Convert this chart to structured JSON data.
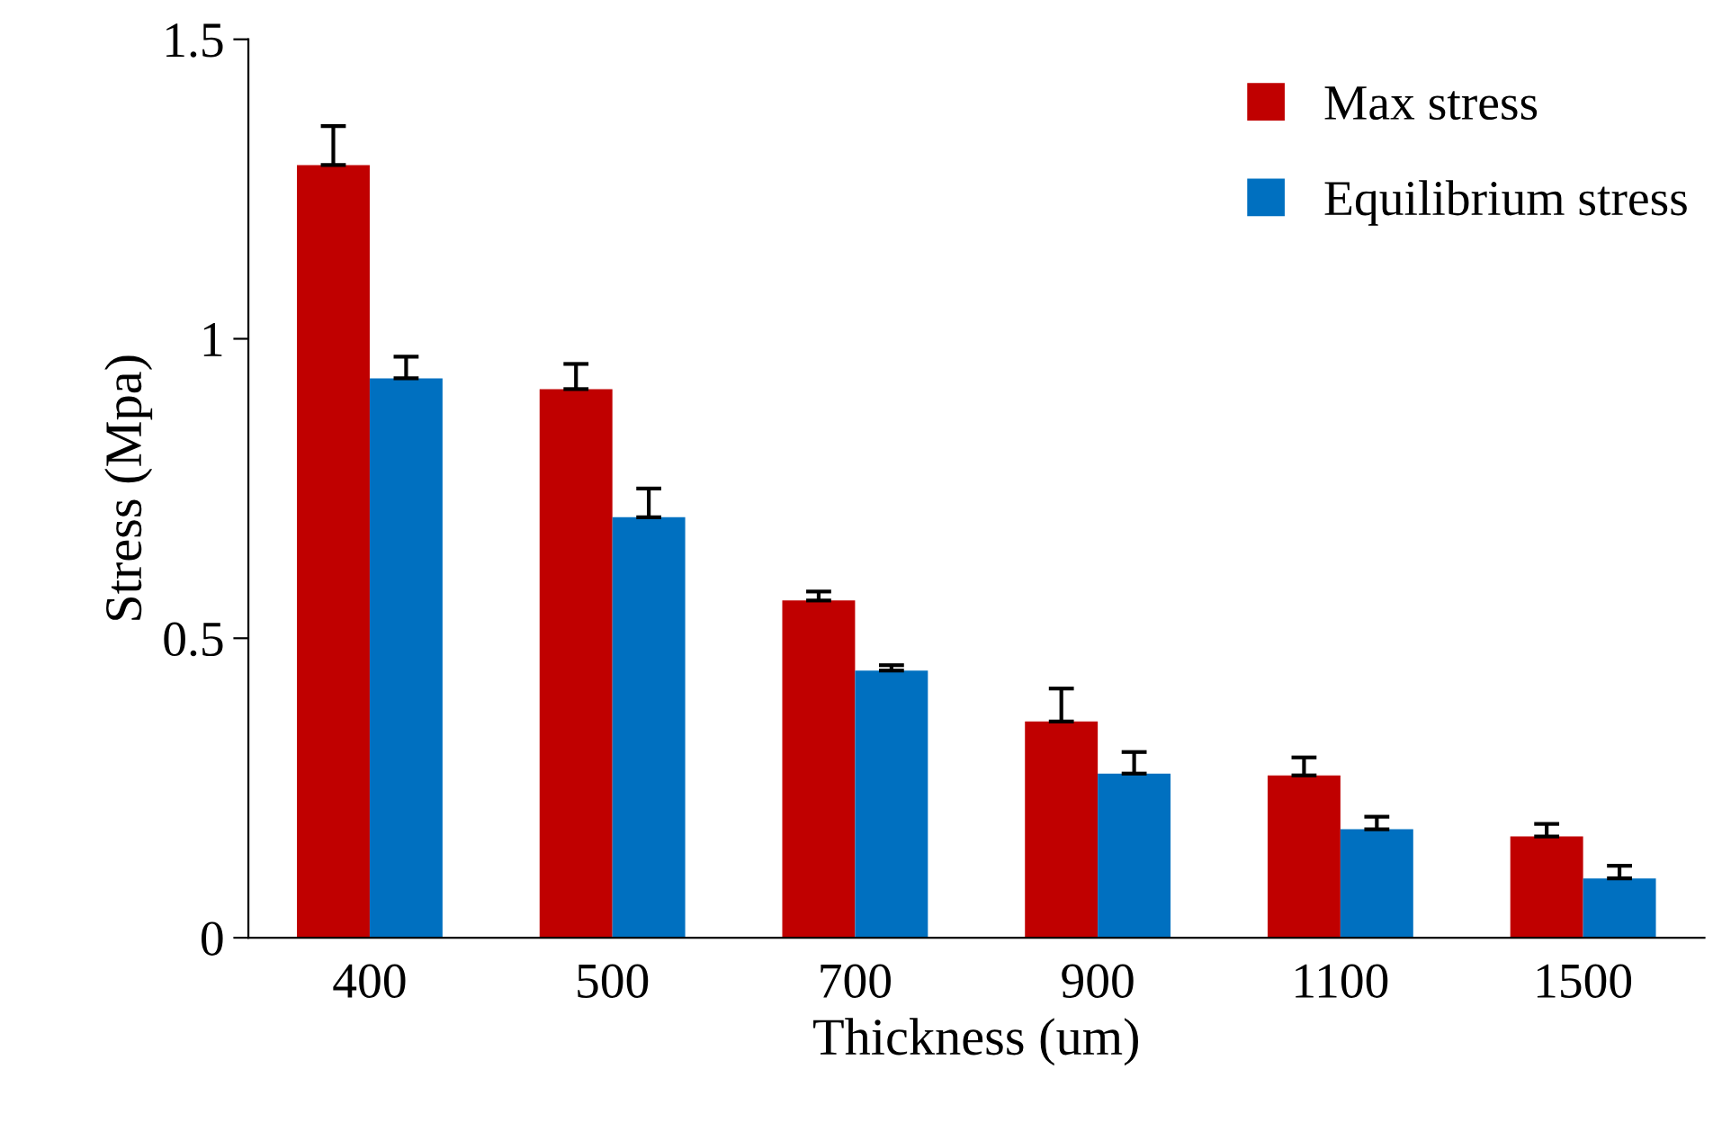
{
  "chart_data": {
    "type": "bar",
    "xlabel": "Thickness (um)",
    "ylabel": "Stress (Mpa)",
    "categories": [
      "400",
      "500",
      "700",
      "900",
      "1100",
      "1500"
    ],
    "series": [
      {
        "name": "Max stress",
        "color": "#c00000",
        "values": [
          1.29,
          0.916,
          0.563,
          0.361,
          0.271,
          0.169
        ],
        "errors": [
          [
            1.29,
            1.355
          ],
          [
            0.916,
            0.958
          ],
          [
            0.563,
            0.578
          ],
          [
            0.361,
            0.416
          ],
          [
            0.271,
            0.301
          ],
          [
            0.169,
            0.19
          ]
        ]
      },
      {
        "name": "Equilibrium stress",
        "color": "#0070c0",
        "values": [
          0.934,
          0.702,
          0.446,
          0.274,
          0.181,
          0.099
        ],
        "errors": [
          [
            0.934,
            0.97
          ],
          [
            0.702,
            0.75
          ],
          [
            0.446,
            0.455
          ],
          [
            0.274,
            0.31
          ],
          [
            0.181,
            0.202
          ],
          [
            0.099,
            0.12
          ]
        ]
      }
    ],
    "ylim": [
      0,
      1.5
    ],
    "yticks": [
      0,
      {
        "value": 0.5,
        "label": "0.5"
      },
      1,
      {
        "value": 1.5,
        "label": "1.5"
      }
    ],
    "grid": false,
    "legend": "top right"
  }
}
